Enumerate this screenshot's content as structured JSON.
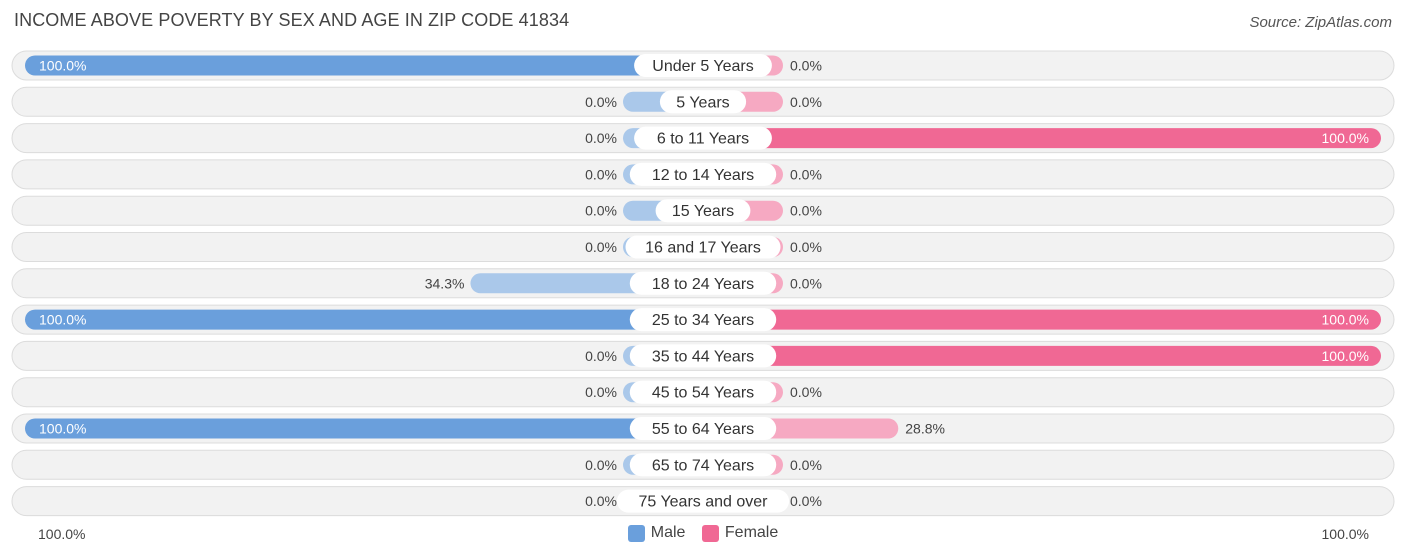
{
  "title": "INCOME ABOVE POVERTY BY SEX AND AGE IN ZIP CODE 41834",
  "source": "Source: ZipAtlas.com",
  "colors": {
    "male_strong": "#6a9fdc",
    "male_light": "#aac8ea",
    "female_strong": "#f06894",
    "female_light": "#f6a9c2"
  },
  "chart_data": {
    "type": "bar",
    "orientation": "horizontal-diverging",
    "categories": [
      "Under 5 Years",
      "5 Years",
      "6 to 11 Years",
      "12 to 14 Years",
      "15 Years",
      "16 and 17 Years",
      "18 to 24 Years",
      "25 to 34 Years",
      "35 to 44 Years",
      "45 to 54 Years",
      "55 to 64 Years",
      "65 to 74 Years",
      "75 Years and over"
    ],
    "series": [
      {
        "name": "Male",
        "values": [
          100.0,
          0.0,
          0.0,
          0.0,
          0.0,
          0.0,
          34.3,
          100.0,
          0.0,
          0.0,
          100.0,
          0.0,
          0.0
        ],
        "labels": [
          "100.0%",
          "0.0%",
          "0.0%",
          "0.0%",
          "0.0%",
          "0.0%",
          "34.3%",
          "100.0%",
          "0.0%",
          "0.0%",
          "100.0%",
          "0.0%",
          "0.0%"
        ]
      },
      {
        "name": "Female",
        "values": [
          0.0,
          0.0,
          100.0,
          0.0,
          0.0,
          0.0,
          0.0,
          100.0,
          100.0,
          0.0,
          28.8,
          0.0,
          0.0
        ],
        "labels": [
          "0.0%",
          "0.0%",
          "100.0%",
          "0.0%",
          "0.0%",
          "0.0%",
          "0.0%",
          "100.0%",
          "100.0%",
          "0.0%",
          "28.8%",
          "0.0%",
          "0.0%"
        ]
      }
    ],
    "xlim": [
      0,
      100
    ],
    "axis_left_label": "100.0%",
    "axis_right_label": "100.0%",
    "legend_position": "bottom-center"
  }
}
